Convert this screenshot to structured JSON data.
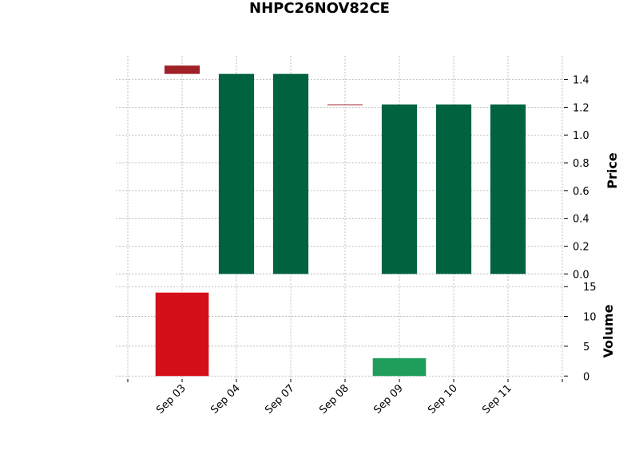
{
  "chart_data": {
    "type": "candlestick",
    "title": "NHPC26NOV82CE",
    "categories": [
      "Sep 03",
      "Sep 04",
      "Sep 07",
      "Sep 08",
      "Sep 09",
      "Sep 10",
      "Sep 11"
    ],
    "open": [
      1.5,
      0,
      0,
      1.22,
      0,
      0,
      0
    ],
    "high": [
      1.5,
      1.44,
      1.44,
      1.22,
      1.22,
      1.22,
      1.22
    ],
    "low": [
      1.44,
      0,
      0,
      1.22,
      0,
      0,
      0
    ],
    "close": [
      1.44,
      1.44,
      1.44,
      1.22,
      1.22,
      1.22,
      1.22
    ],
    "volume": [
      14,
      0,
      0,
      0,
      3,
      0,
      0
    ],
    "ylabel": "Price",
    "y2label": "Volume",
    "xlim": [
      -1,
      7
    ],
    "ylim": [
      -0.05,
      1.57
    ],
    "yticks": [
      {
        "value": 0,
        "label": "0.0"
      },
      0.2,
      0.4,
      0.6,
      0.8,
      {
        "value": 1,
        "label": "1.0"
      },
      1.2,
      1.4
    ],
    "y2lim": [
      -0.5,
      15.5
    ],
    "y2ticks": [
      0,
      5,
      10,
      15
    ],
    "up_color": "#006340",
    "down_color": "#a02128",
    "volume_up_color": "#1f9e5b",
    "volume_down_color": "#d50f1a",
    "grid": true
  }
}
